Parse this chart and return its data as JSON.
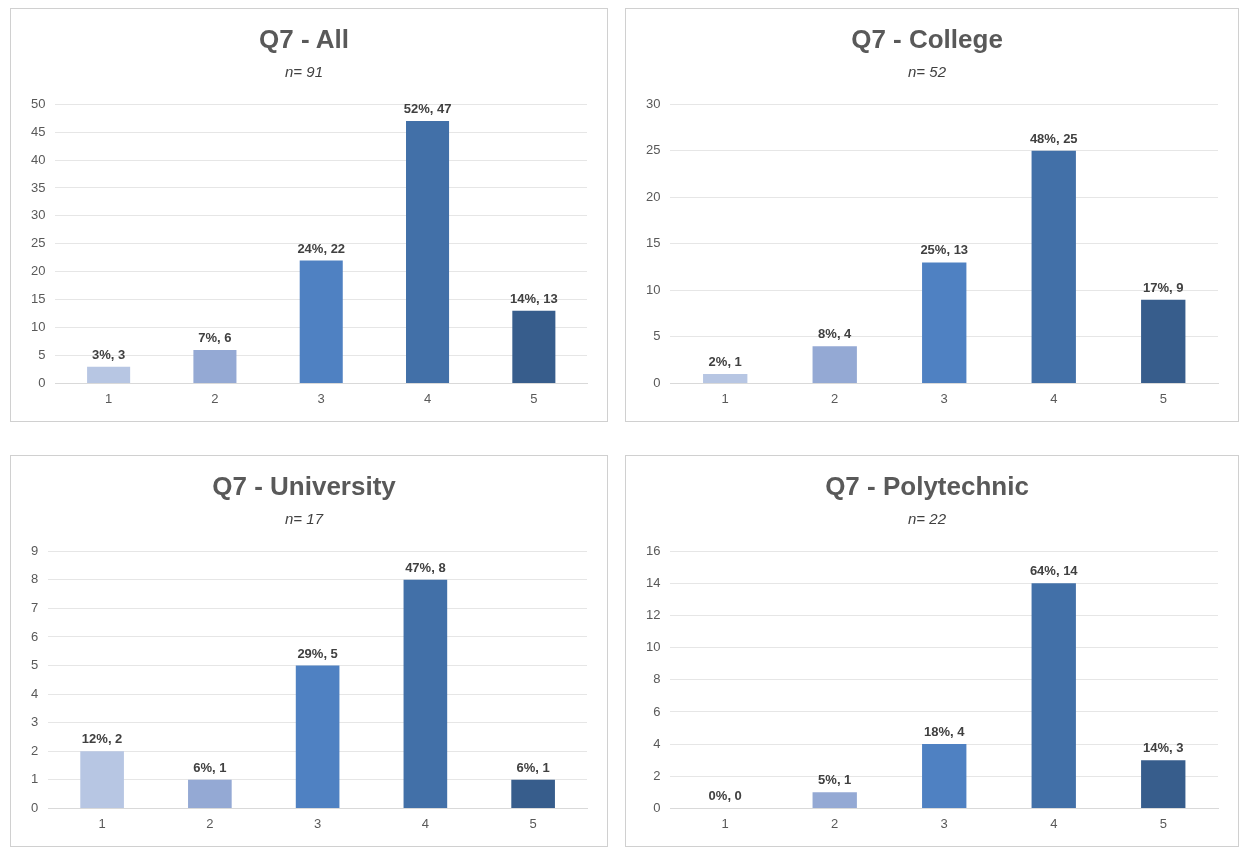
{
  "chart_data": [
    {
      "type": "bar",
      "title": "Q7 - All",
      "subtitle": "n= 91",
      "categories": [
        "1",
        "2",
        "3",
        "4",
        "5"
      ],
      "values": [
        3,
        6,
        22,
        47,
        13
      ],
      "colors": [
        "#b7c6e3",
        "#94a9d4",
        "#4f81c2",
        "#4270a8",
        "#375d8c"
      ],
      "value_labels": [
        "3%, 3",
        "7%, 6",
        "24%, 22",
        "52%, 47",
        "14%, 13"
      ],
      "ylim": [
        0,
        50
      ],
      "yticks": [
        0,
        5,
        10,
        15,
        20,
        25,
        30,
        35,
        40,
        45,
        50
      ],
      "grid": "y",
      "legend": false
    },
    {
      "type": "bar",
      "title": "Q7 - College",
      "subtitle": "n= 52",
      "categories": [
        "1",
        "2",
        "3",
        "4",
        "5"
      ],
      "values": [
        1,
        4,
        13,
        25,
        9
      ],
      "colors": [
        "#b7c6e3",
        "#94a9d4",
        "#4f81c2",
        "#4270a8",
        "#375d8c"
      ],
      "value_labels": [
        "2%, 1",
        "8%, 4",
        "25%, 13",
        "48%, 25",
        "17%, 9"
      ],
      "ylim": [
        0,
        30
      ],
      "yticks": [
        0,
        5,
        10,
        15,
        20,
        25,
        30
      ],
      "grid": "y",
      "legend": false
    },
    {
      "type": "bar",
      "title": "Q7 - University",
      "subtitle": "n= 17",
      "categories": [
        "1",
        "2",
        "3",
        "4",
        "5"
      ],
      "values": [
        2,
        1,
        5,
        8,
        1
      ],
      "colors": [
        "#b7c6e3",
        "#94a9d4",
        "#4f81c2",
        "#4270a8",
        "#375d8c"
      ],
      "value_labels": [
        "12%, 2",
        "6%, 1",
        "29%, 5",
        "47%, 8",
        "6%, 1"
      ],
      "ylim": [
        0,
        9
      ],
      "yticks": [
        0,
        1,
        2,
        3,
        4,
        5,
        6,
        7,
        8,
        9
      ],
      "grid": "y",
      "legend": false
    },
    {
      "type": "bar",
      "title": "Q7 - Polytechnic",
      "subtitle": "n= 22",
      "categories": [
        "1",
        "2",
        "3",
        "4",
        "5"
      ],
      "values": [
        0,
        1,
        4,
        14,
        3
      ],
      "colors": [
        "#b7c6e3",
        "#94a9d4",
        "#4f81c2",
        "#4270a8",
        "#375d8c"
      ],
      "value_labels": [
        "0%, 0",
        "5%, 1",
        "18%, 4",
        "64%, 14",
        "14%, 3"
      ],
      "ylim": [
        0,
        16
      ],
      "yticks": [
        0,
        2,
        4,
        6,
        8,
        10,
        12,
        14,
        16
      ],
      "grid": "y",
      "legend": false
    }
  ]
}
